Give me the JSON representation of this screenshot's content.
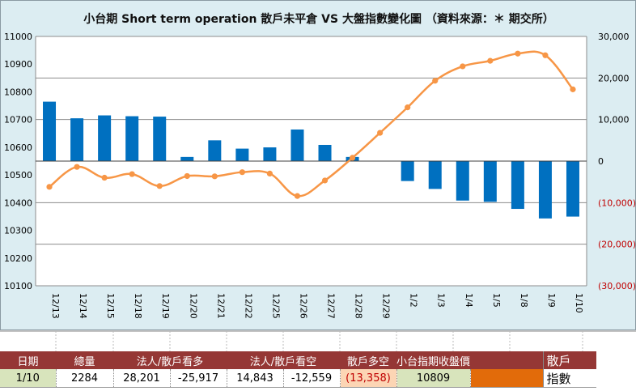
{
  "title": "小台期 Short term operation 散戶未平倉 VS 大盤指數變化圖 （資料來源：＊ 期交所）",
  "colors": {
    "bars": "#0070c0",
    "line": "#f79646",
    "negative_axis": "#c00000",
    "header_bg": "#953735",
    "panel_bg": "#dcedf2"
  },
  "chart_data": {
    "type": "bar+line",
    "categories": [
      "12/13",
      "12/14",
      "12/15",
      "12/18",
      "12/19",
      "12/20",
      "12/21",
      "12/22",
      "12/25",
      "12/26",
      "12/27",
      "12/28",
      "12/29",
      "1/2",
      "1/3",
      "1/4",
      "1/5",
      "1/8",
      "1/9",
      "1/10"
    ],
    "left_axis": {
      "min": 10100,
      "max": 11000,
      "step": 100,
      "ticks": [
        "10100",
        "10200",
        "10300",
        "10400",
        "10500",
        "10600",
        "10700",
        "10800",
        "10900",
        "11000"
      ]
    },
    "right_axis": {
      "min": -30000,
      "max": 30000,
      "step": 10000,
      "ticks": [
        "(30,000)",
        "(20,000)",
        "(10,000)",
        "0",
        "10,000",
        "20,000",
        "30,000"
      ]
    },
    "series": [
      {
        "axis": "right",
        "type": "bar",
        "values": [
          14300,
          10300,
          11000,
          10800,
          10700,
          1000,
          5000,
          3000,
          3300,
          7600,
          3900,
          1000,
          0,
          -4800,
          -6700,
          -9500,
          -9800,
          -11500,
          -13800,
          -13358
        ]
      },
      {
        "axis": "left",
        "type": "line",
        "values": [
          10457,
          10529,
          10490,
          10503,
          10460,
          10496,
          10495,
          10510,
          10505,
          10424,
          10480,
          10562,
          10652,
          10744,
          10840,
          10892,
          10912,
          10938,
          10932,
          10809
        ]
      }
    ],
    "grid": true
  },
  "table": {
    "headers": [
      "日期",
      "總量",
      "法人/散戶看多",
      "",
      "法人/散戶看空",
      "",
      "散戶多空",
      "小台指期收盤價"
    ],
    "row": [
      "1/10",
      "2284",
      "28,201",
      "-25,917",
      "14,843",
      "-12,559",
      "(13,358)",
      "10809"
    ]
  },
  "legend": [
    {
      "label": "散戶",
      "icon": "blue-swatch"
    },
    {
      "label": "指數",
      "icon": "orange-swatch"
    }
  ]
}
